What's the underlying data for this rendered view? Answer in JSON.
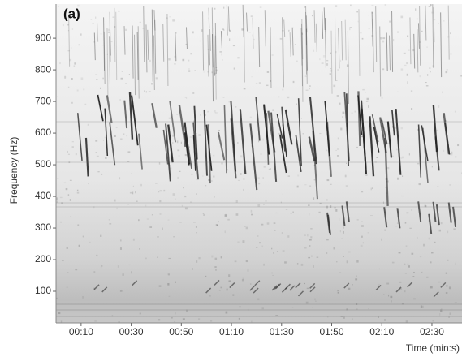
{
  "chart_data": {
    "type": "spectrogram",
    "title": "(a)",
    "x_label": "Time (min:s)",
    "y_label": "Frequency (Hz)",
    "xlim": [
      0,
      162
    ],
    "xticks": [
      {
        "value": 10,
        "label": "00:10"
      },
      {
        "value": 30,
        "label": "00:30"
      },
      {
        "value": 50,
        "label": "00:50"
      },
      {
        "value": 70,
        "label": "01:10"
      },
      {
        "value": 90,
        "label": "01:30"
      },
      {
        "value": 110,
        "label": "01:50"
      },
      {
        "value": 130,
        "label": "02:10"
      },
      {
        "value": 150,
        "label": "02:30"
      }
    ],
    "ylim": [
      0,
      1008
    ],
    "yticks": [
      100,
      200,
      300,
      400,
      500,
      600,
      700,
      800,
      900
    ]
  }
}
